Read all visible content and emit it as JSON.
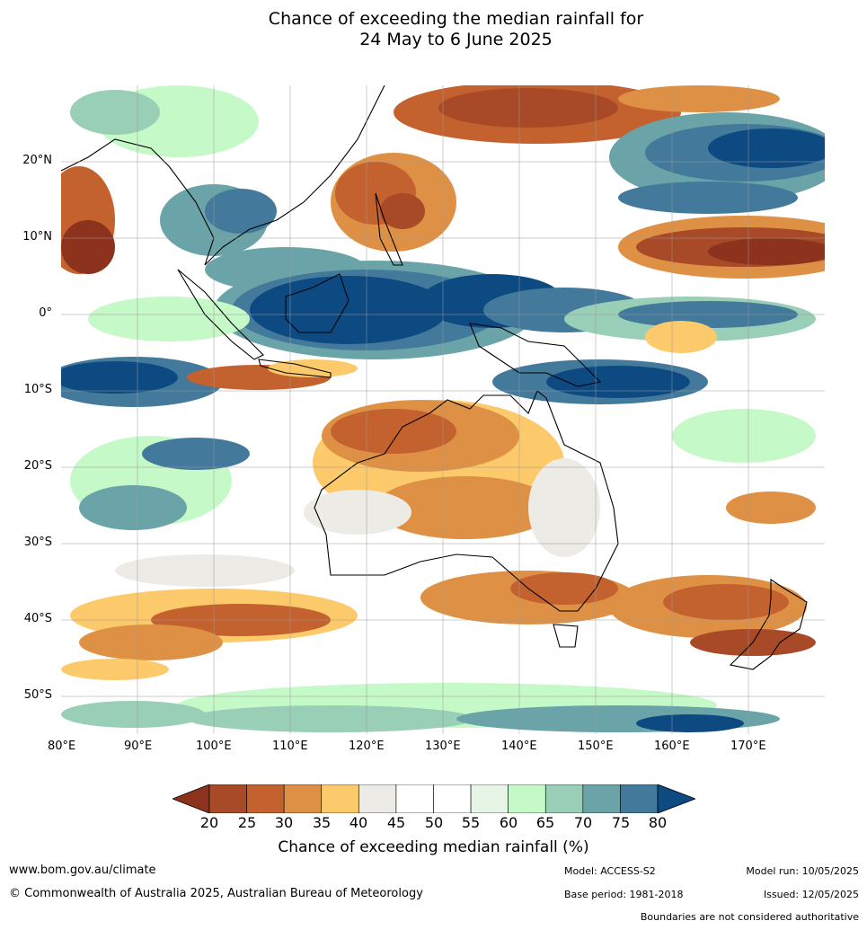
{
  "title_line1": "Chance of exceeding the median rainfall for",
  "title_line2": "24 May to 6 June 2025",
  "map": {
    "lat_labels": [
      "20°N",
      "10°N",
      "0°",
      "10°S",
      "20°S",
      "30°S",
      "40°S",
      "50°S"
    ],
    "lon_labels": [
      "80°E",
      "90°E",
      "100°E",
      "110°E",
      "120°E",
      "130°E",
      "140°E",
      "150°E",
      "160°E",
      "170°E"
    ],
    "lat_values": [
      20,
      10,
      0,
      -10,
      -20,
      -30,
      -40,
      -50
    ],
    "lon_values": [
      80,
      90,
      100,
      110,
      120,
      130,
      140,
      150,
      160,
      170
    ],
    "lon_range": [
      80,
      180
    ],
    "lat_range": [
      -55,
      30
    ]
  },
  "colorbar": {
    "ticks": [
      "20",
      "25",
      "30",
      "35",
      "40",
      "45",
      "50",
      "55",
      "60",
      "65",
      "70",
      "75",
      "80"
    ],
    "colors": [
      "#a84a28",
      "#c4622f",
      "#de9145",
      "#fdca6b",
      "#edebe6",
      "#ffffff",
      "#ffffff",
      "#e6f5e6",
      "#c6f9c8",
      "#98cfb6",
      "#6aa4a8",
      "#437a9c"
    ],
    "under_color": "#8c321d",
    "over_color": "#0d4a82",
    "label": "Chance of exceeding median rainfall (%)"
  },
  "footer": {
    "website": "www.bom.gov.au/climate",
    "copyright": "© Commonwealth of Australia 2025, Australian Bureau of Meteorology",
    "model": "Model: ACCESS-S2",
    "model_run": "Model run: 10/05/2025",
    "base_period": "Base period: 1981-2018",
    "issued": "Issued: 12/05/2025",
    "disclaimer": "Boundaries are not considered authoritative"
  }
}
